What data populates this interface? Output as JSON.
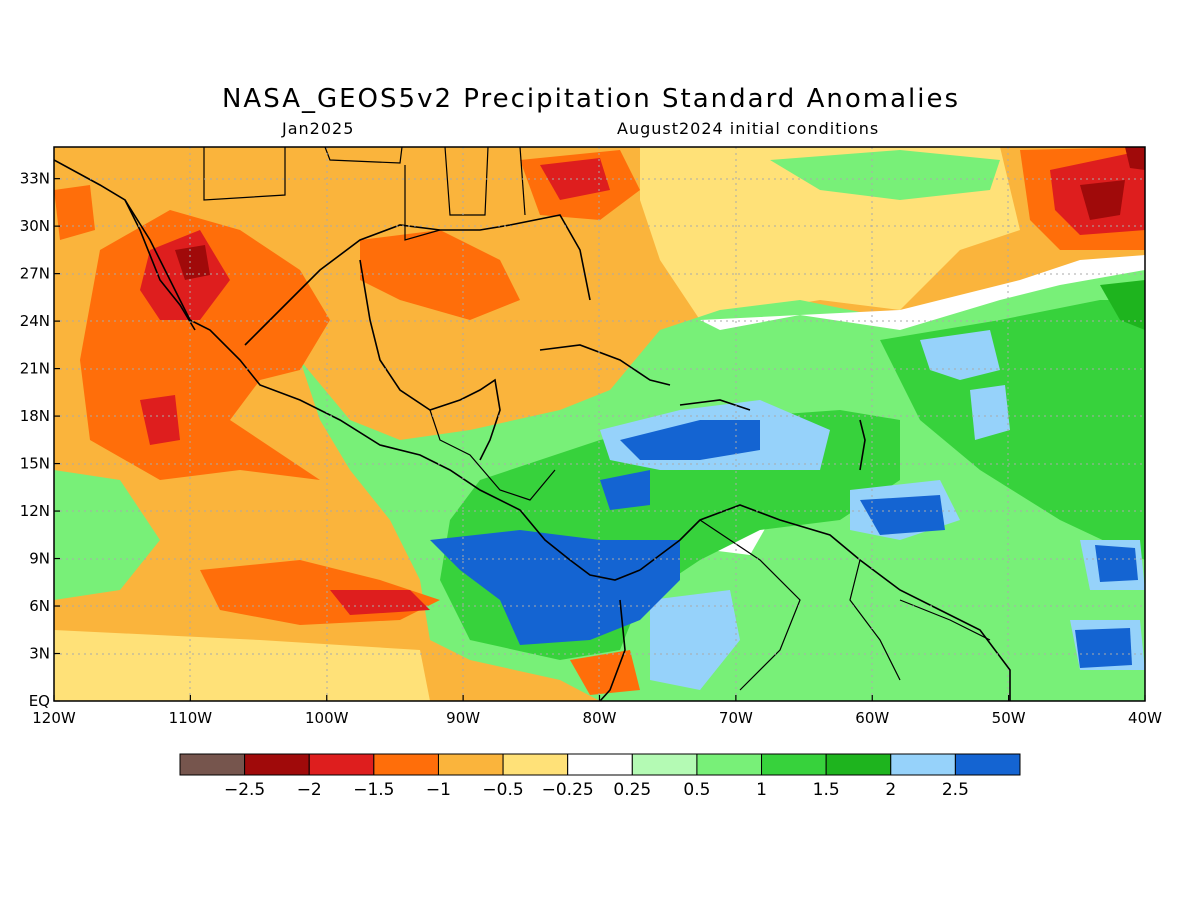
{
  "title": "NASA_GEOS5v2 Precipitation Standard Anomalies",
  "subtitle_left": "Jan2025",
  "subtitle_right": "August2024 initial conditions",
  "map": {
    "lon_range": [
      -120,
      -40
    ],
    "lat_range": [
      0,
      35
    ],
    "x_ticks": [
      "120W",
      "110W",
      "100W",
      "90W",
      "80W",
      "70W",
      "60W",
      "50W",
      "40W"
    ],
    "y_ticks": [
      "EQ",
      "3N",
      "6N",
      "9N",
      "12N",
      "15N",
      "18N",
      "21N",
      "24N",
      "27N",
      "30N",
      "33N"
    ]
  },
  "colorbar": {
    "colors": [
      "#76554d",
      "#a00a0a",
      "#de1e1e",
      "#ff6e0a",
      "#fab43c",
      "#ffe178",
      "#ffffff",
      "#b4fab4",
      "#78f078",
      "#37d23c",
      "#1eb41e",
      "#96d2fa",
      "#1464d2"
    ],
    "labels": [
      "−2.5",
      "−2",
      "−1.5",
      "−1",
      "−0.5",
      "−0.25",
      "0.25",
      "0.5",
      "1",
      "1.5",
      "2",
      "2.5"
    ]
  },
  "palette": {
    "ocean_land_base": "#fab43c",
    "coast": "#000000",
    "grid": "#aaaaaa"
  }
}
